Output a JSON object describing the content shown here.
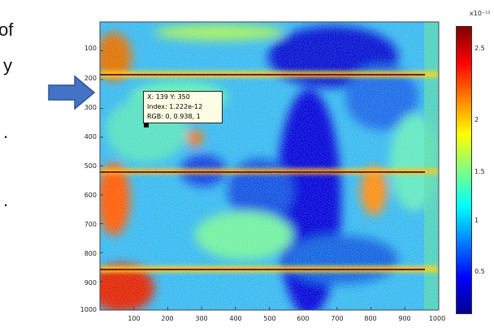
{
  "slide_text": [
    "of",
    "y",
    ".",
    "."
  ],
  "datatip": {
    "line1": "X: 139 Y: 350",
    "line2": "Index: 1.222e-12",
    "line3": "RGB: 0, 0.938, 1"
  },
  "colors": {
    "arrow_fill": "#4472c4",
    "arrow_stroke": "#2f5597",
    "colormap": [
      "#00008f",
      "#0000ff",
      "#0080ff",
      "#00ffff",
      "#80ff80",
      "#ffff00",
      "#ff8000",
      "#ff0000",
      "#800000"
    ]
  },
  "chart_data": {
    "type": "heatmap",
    "title": "",
    "xlabel": "",
    "ylabel": "",
    "xlim": [
      0,
      1000
    ],
    "ylim": [
      1000,
      0
    ],
    "xticks": [
      "100",
      "200",
      "300",
      "400",
      "500",
      "600",
      "700",
      "800",
      "900",
      "1000"
    ],
    "yticks": [
      "100",
      "200",
      "300",
      "400",
      "500",
      "600",
      "700",
      "800",
      "900",
      "1000"
    ],
    "colorbar": {
      "scale_label": "x10⁻¹²",
      "ticks": [
        "0.5",
        "1",
        "1.5",
        "2",
        "2.5"
      ],
      "range": [
        0,
        3.0
      ],
      "colormap": "jet"
    },
    "features": {
      "bright_bands_y": [
        190,
        510,
        840
      ],
      "low_region_x": [
        520,
        620
      ],
      "high_regions": [
        {
          "x": [
            0,
            200
          ],
          "y": [
            880,
            1000
          ],
          "level": "high"
        },
        {
          "x": [
            0,
            100
          ],
          "y": [
            500,
            700
          ],
          "level": "high"
        },
        {
          "x": [
            760,
            880
          ],
          "y": [
            480,
            620
          ],
          "level": "high"
        }
      ]
    }
  }
}
